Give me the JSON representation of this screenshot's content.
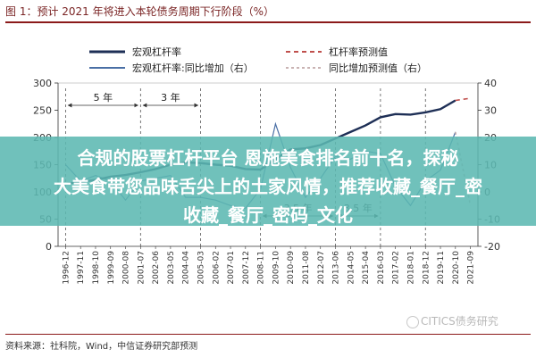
{
  "figure": {
    "title": "图 1：预计 2021 年将进入本轮债务周期下行阶段（%）",
    "source": "资料来源：社科院，Wind，中信证券研究部预测",
    "watermark": "CITICS债务研究"
  },
  "overlay": {
    "line1": "合规的股票杠杆平台 恩施美食排名前十名，探秘",
    "line2": "大美食带您品味舌尖上的土家风情，推荐收藏_餐厅_密",
    "line3": "收藏_餐厅_密码_文化"
  },
  "colors": {
    "leverage": "#1e2f56",
    "forecast": "#c0504d",
    "yoy": "#4a6fa5",
    "yoy_forecast": "#c9b3b3",
    "brand": "#8b1a1a"
  },
  "chart_data": {
    "type": "line",
    "x": [
      "1996-12",
      "1997-11",
      "1998-10",
      "1999-09",
      "2000-08",
      "2001-07",
      "2002-06",
      "2003-05",
      "2004-04",
      "2005-03",
      "2006-02",
      "2007-01",
      "2007-12",
      "2008-11",
      "2009-10",
      "2010-09",
      "2011-08",
      "2012-07",
      "2013-06",
      "2014-05",
      "2015-04",
      "2016-03",
      "2017-02",
      "2018-01",
      "2018-12",
      "2019-11",
      "2020-10",
      "2021-09"
    ],
    "x_tick_labels": [
      "1996-12",
      "1997-11",
      "1998-10",
      "1999-09",
      "2000-08",
      "2001-07",
      "2002-06",
      "2003-05",
      "2004-04",
      "2005-03",
      "2006-02",
      "2007-01",
      "2007-12",
      "2008-11",
      "2009-10",
      "2010-09",
      "2011-08",
      "2012-07",
      "2013-06",
      "2014-05",
      "2015-04",
      "2016-03",
      "2017-02",
      "2018-01",
      "2018-12",
      "2019-11",
      "2020-10",
      "2021-09"
    ],
    "y_left": {
      "ylim": [
        0,
        300
      ],
      "ticks": [
        0,
        50,
        100,
        150,
        200,
        250,
        300
      ]
    },
    "y_right": {
      "ylim": [
        -20,
        40
      ],
      "ticks": [
        -20,
        -10,
        0,
        10,
        20,
        30,
        40
      ]
    },
    "series": [
      {
        "name": "宏观杠杆率",
        "axis": "left",
        "style": "solid",
        "values": [
          115,
          118,
          122,
          128,
          131,
          136,
          142,
          150,
          154,
          153,
          150,
          148,
          142,
          141,
          160,
          178,
          180,
          186,
          198,
          210,
          222,
          237,
          243,
          242,
          246,
          252,
          268,
          null
        ]
      },
      {
        "name": "杠杆率预测值",
        "axis": "left",
        "style": "dashed",
        "values": [
          null,
          null,
          null,
          null,
          null,
          null,
          null,
          null,
          null,
          null,
          null,
          null,
          null,
          null,
          null,
          null,
          null,
          null,
          null,
          null,
          null,
          null,
          null,
          null,
          null,
          null,
          268,
          272
        ]
      },
      {
        "name": "宏观杠杆率:同比增加（右）",
        "axis": "right",
        "style": "solid",
        "values": [
          10,
          4,
          6,
          4,
          -3,
          4,
          5,
          6,
          -2,
          -2,
          -3,
          -5,
          -6,
          1,
          25,
          9,
          -2,
          5,
          13,
          12,
          15,
          14,
          2,
          -5,
          4,
          8,
          22,
          null
        ]
      },
      {
        "name": "同比增加预测值（右）",
        "axis": "right",
        "style": "dashed",
        "values": [
          null,
          null,
          null,
          null,
          null,
          null,
          null,
          null,
          null,
          null,
          null,
          null,
          null,
          null,
          null,
          null,
          null,
          null,
          null,
          null,
          null,
          null,
          null,
          null,
          null,
          null,
          22,
          -5
        ]
      }
    ],
    "annotations": [
      "5 年",
      "3 年",
      "3.5 年",
      "3.5 年"
    ],
    "grid": false,
    "legend": "top"
  }
}
